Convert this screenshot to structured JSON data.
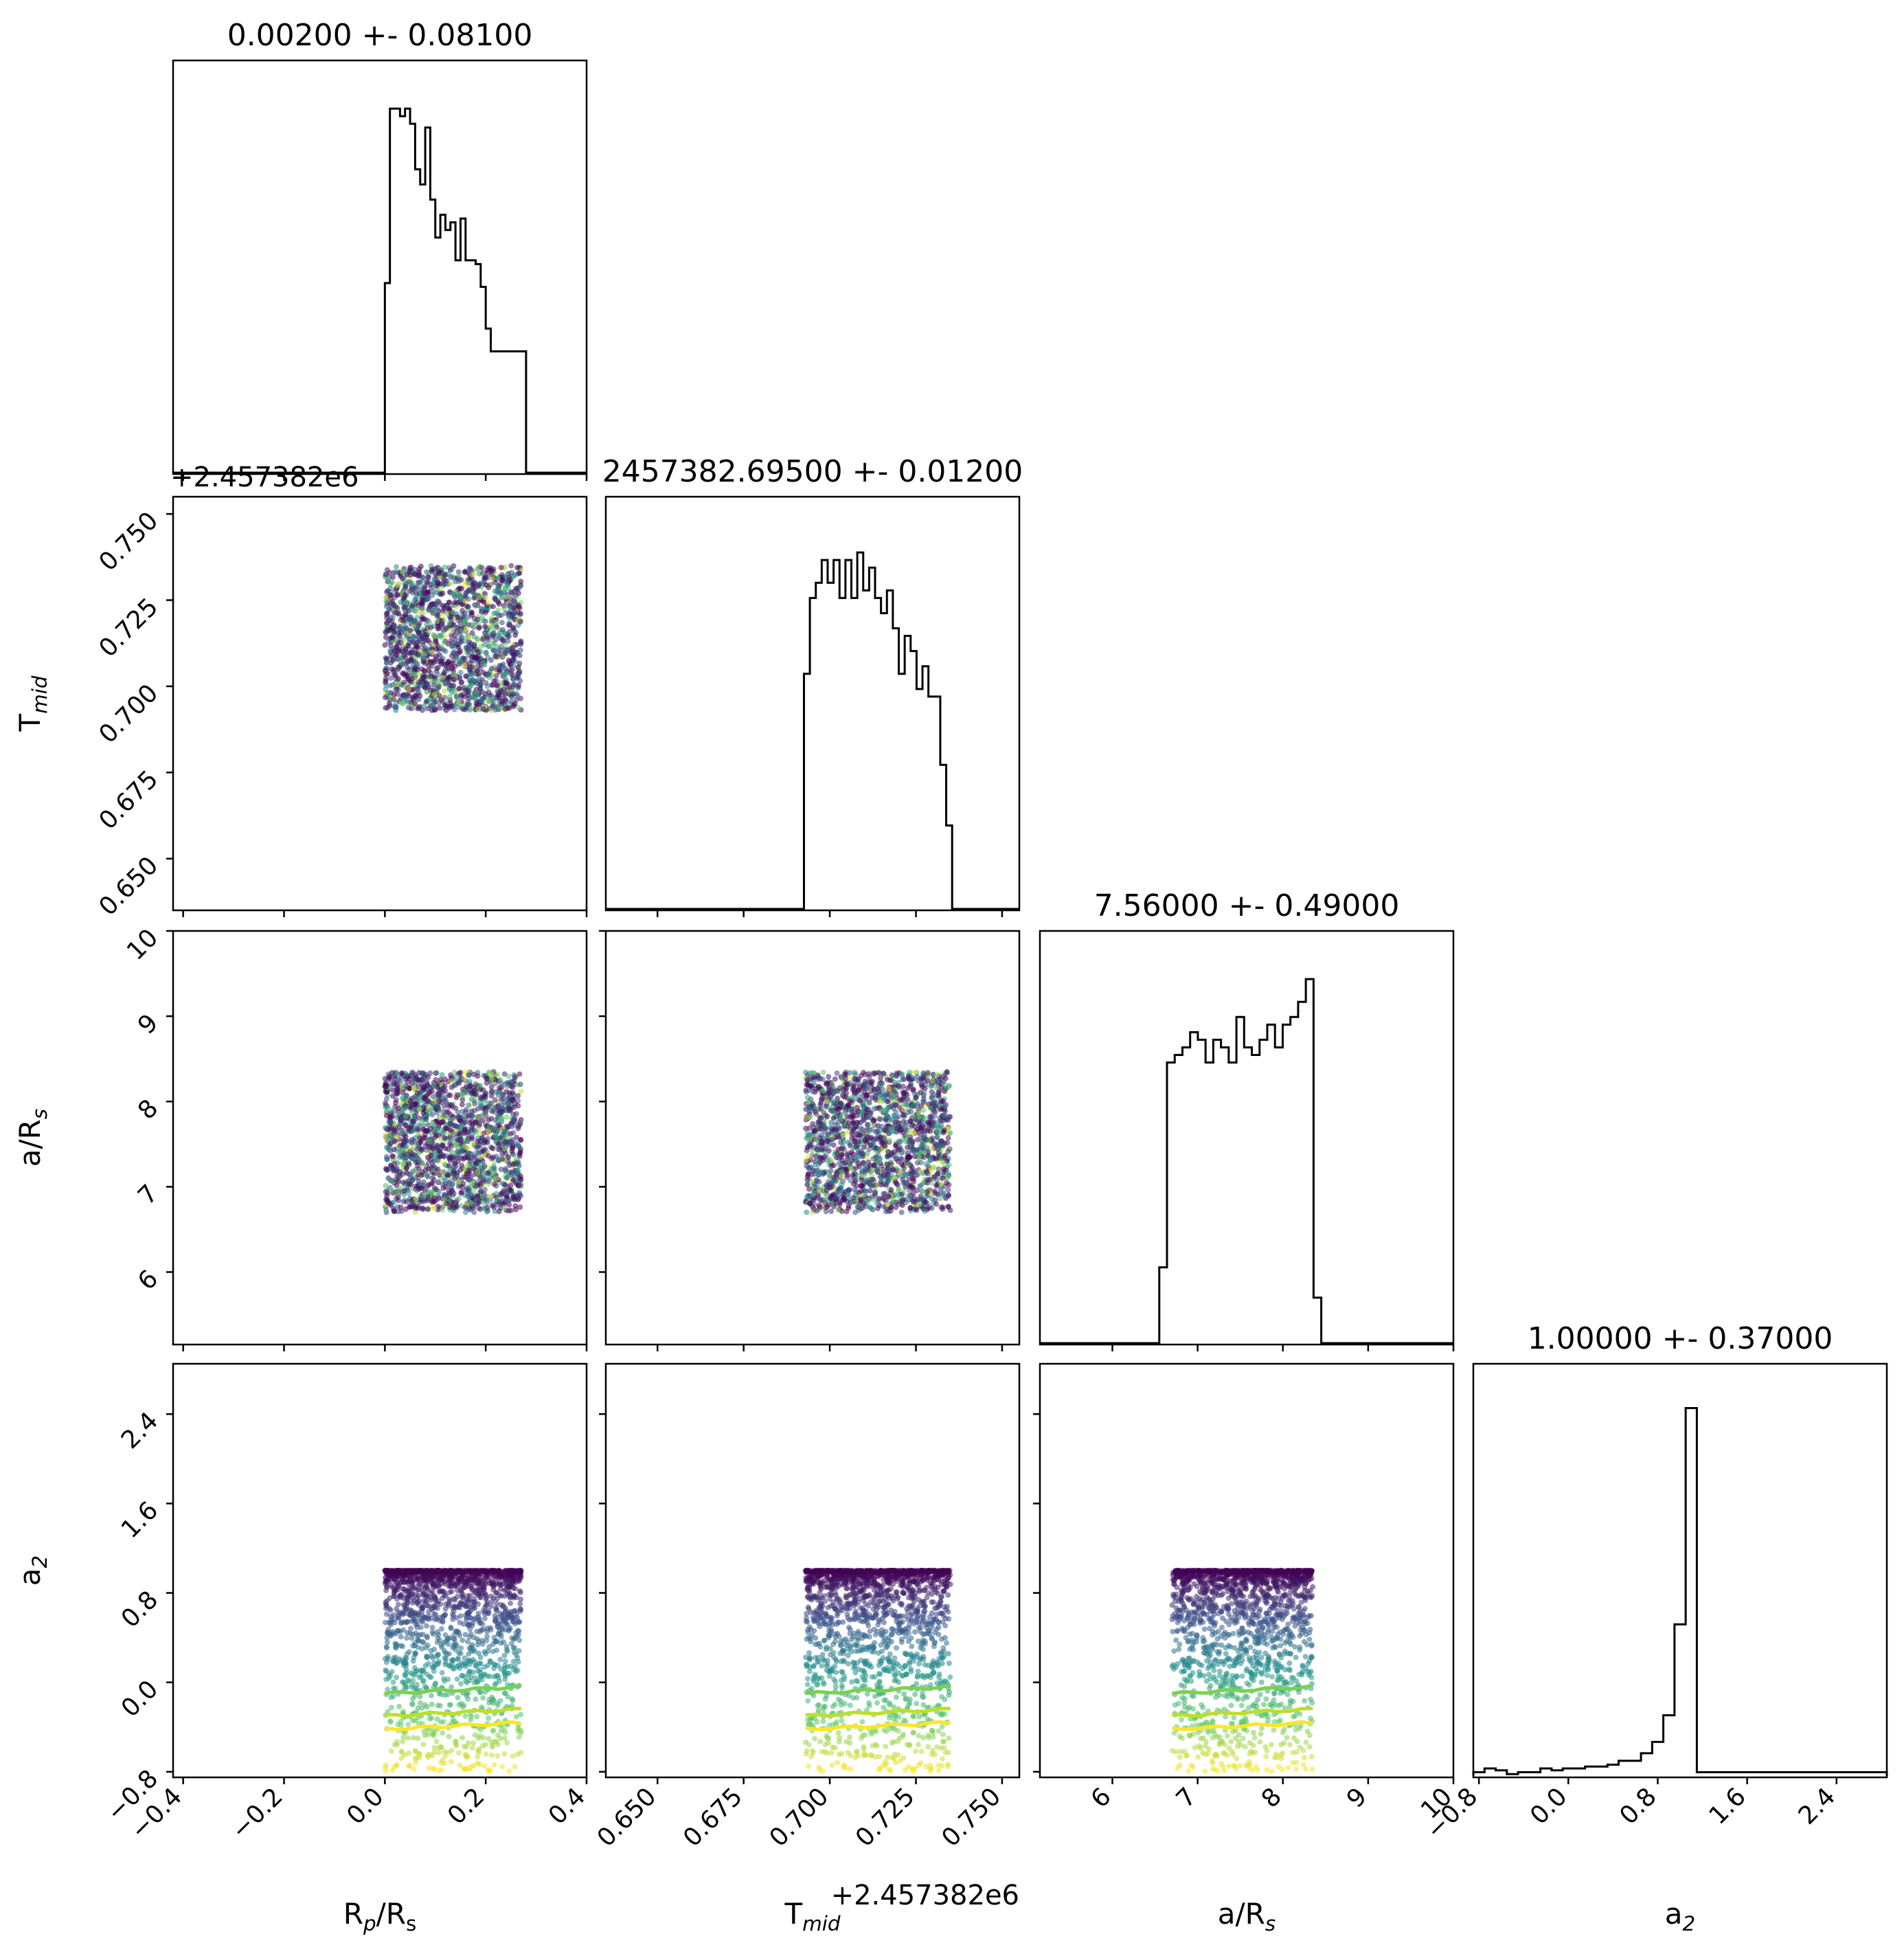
{
  "page": {
    "background": "#ffffff"
  },
  "chart_data": {
    "type": "scatter",
    "layout": "corner-plot",
    "parameters": [
      {
        "key": "rp",
        "label_main": "R",
        "label_sub": "p",
        "label_tail": "/R",
        "label_sub2": "s",
        "range": [
          -0.42,
          0.4
        ],
        "ticks": [
          -0.4,
          -0.2,
          0.0,
          0.2,
          0.4
        ],
        "tick_labels": [
          "−0.4",
          "−0.2",
          "0.0",
          "0.2",
          "0.4"
        ],
        "title": "0.00200 +- 0.08100",
        "hist": {
          "edges": [
            0.0,
            0.28
          ],
          "counts": [
            0.5,
            0.96,
            0.96,
            0.94,
            0.96,
            0.92,
            0.8,
            0.76,
            0.91,
            0.72,
            0.62,
            0.68,
            0.64,
            0.66,
            0.56,
            0.67,
            0.56,
            0.56,
            0.55,
            0.49,
            0.38,
            0.32,
            0.32,
            0.32,
            0.32,
            0.32,
            0.32,
            0.32
          ]
        }
      },
      {
        "key": "tmid",
        "label_main": "T",
        "label_sub": "mid",
        "label_tail": "",
        "label_sub2": "",
        "offset_label": "+2.457382e6",
        "range": [
          0.635,
          0.755
        ],
        "ticks": [
          0.65,
          0.675,
          0.7,
          0.725,
          0.75
        ],
        "tick_labels": [
          "0.650",
          "0.675",
          "0.700",
          "0.725",
          "0.750"
        ],
        "title": "2457382.69500 +- 0.01200",
        "hist": {
          "edges": [
            0.6925,
            0.7355
          ],
          "counts": [
            0.62,
            0.82,
            0.86,
            0.92,
            0.86,
            0.92,
            0.82,
            0.92,
            0.82,
            0.94,
            0.84,
            0.9,
            0.82,
            0.78,
            0.84,
            0.74,
            0.62,
            0.72,
            0.68,
            0.58,
            0.64,
            0.56,
            0.56,
            0.38,
            0.22
          ]
        }
      },
      {
        "key": "ars",
        "label_main": "a/R",
        "label_sub": "s",
        "label_tail": "",
        "label_sub2": "",
        "range": [
          5.15,
          10.0
        ],
        "ticks": [
          6,
          7,
          8,
          9,
          10
        ],
        "tick_labels": [
          "6",
          "7",
          "8",
          "9",
          "10"
        ],
        "title": "7.56000 +- 0.49000",
        "hist": {
          "edges": [
            6.55,
            8.45
          ],
          "counts": [
            0.2,
            0.74,
            0.76,
            0.78,
            0.82,
            0.8,
            0.74,
            0.8,
            0.78,
            0.74,
            0.86,
            0.78,
            0.76,
            0.8,
            0.84,
            0.78,
            0.84,
            0.86,
            0.9,
            0.96,
            0.12
          ]
        }
      },
      {
        "key": "a2",
        "label_main": "a",
        "label_sub": "2",
        "label_tail": "",
        "label_sub2": "",
        "range": [
          -0.85,
          2.85
        ],
        "ticks": [
          -0.8,
          0.0,
          0.8,
          1.6,
          2.4
        ],
        "tick_labels": [
          "−0.8",
          "0.0",
          "0.8",
          "1.6",
          "2.4"
        ],
        "title": "1.00000 +- 0.37000",
        "hist": {
          "edges": [
            -0.85,
            2.85
          ],
          "counts": [
            0.01,
            0.02,
            0.015,
            0.005,
            0.01,
            0.01,
            0.02,
            0.015,
            0.02,
            0.02,
            0.025,
            0.025,
            0.03,
            0.04,
            0.04,
            0.06,
            0.09,
            0.16,
            0.4,
            0.97,
            0.01,
            0.01,
            0.01,
            0.01,
            0.01,
            0.01,
            0.01,
            0.01,
            0.01,
            0.01,
            0.01,
            0.01,
            0.01,
            0.01,
            0.01,
            0.01,
            0.01
          ]
        }
      }
    ],
    "samples": {
      "rp": [
        0.0,
        0.27
      ],
      "tmid": [
        0.693,
        0.735
      ],
      "ars": [
        6.7,
        8.35
      ],
      "a2": [
        -0.8,
        1.0
      ]
    },
    "a2_trend_lines": [
      {
        "level": -0.1,
        "color": "#7ad151"
      },
      {
        "level": -0.3,
        "color": "#bddf26"
      },
      {
        "level": -0.42,
        "color": "#fde725"
      }
    ],
    "colormap": [
      "#440154",
      "#3b528b",
      "#21918c",
      "#5ec962",
      "#fde725"
    ]
  }
}
